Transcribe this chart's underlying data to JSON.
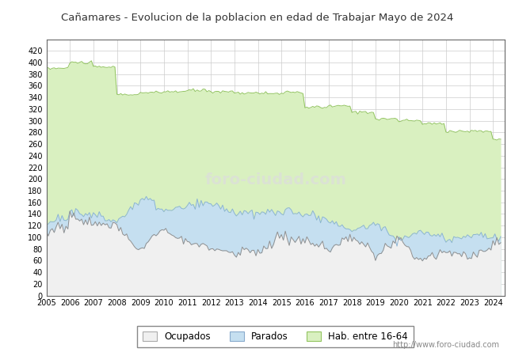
{
  "title": "Cañamares - Evolucion de la poblacion en edad de Trabajar Mayo de 2024",
  "title_color": "#333333",
  "ylabel": "",
  "xlabel": "",
  "ylim": [
    0,
    440
  ],
  "yticks": [
    0,
    20,
    40,
    60,
    80,
    100,
    120,
    140,
    160,
    180,
    200,
    220,
    240,
    260,
    280,
    300,
    320,
    340,
    360,
    380,
    400,
    420
  ],
  "url": "http://www.foro-ciudad.com",
  "hab_color": "#d9f0c0",
  "hab_edge": "#92c460",
  "parados_color": "#c5dff0",
  "parados_edge": "#8ab4d4",
  "ocupados_color": "#f0f0f0",
  "ocupados_edge": "#909090",
  "legend_labels": [
    "Ocupados",
    "Parados",
    "Hab. entre 16-64"
  ],
  "header_color": "#d0d8e8",
  "n_points": 233
}
